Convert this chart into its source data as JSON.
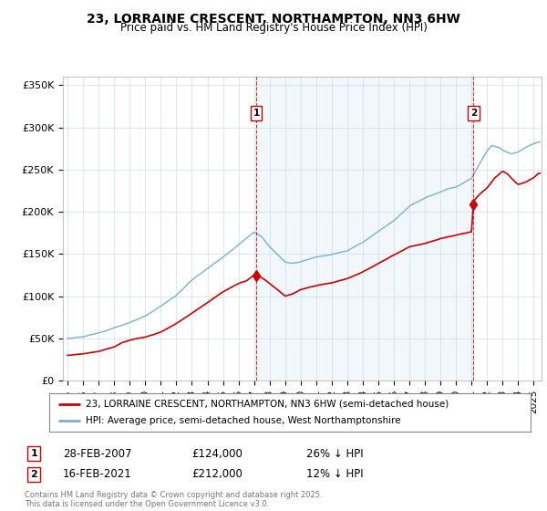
{
  "title_line1": "23, LORRAINE CRESCENT, NORTHAMPTON, NN3 6HW",
  "title_line2": "Price paid vs. HM Land Registry's House Price Index (HPI)",
  "ytick_labels": [
    "£0",
    "£50K",
    "£100K",
    "£150K",
    "£200K",
    "£250K",
    "£300K",
    "£350K"
  ],
  "ytick_values": [
    0,
    50000,
    100000,
    150000,
    200000,
    250000,
    300000,
    350000
  ],
  "ylim": [
    0,
    360000
  ],
  "xlim_start": 1994.7,
  "xlim_end": 2025.5,
  "xtick_years": [
    1995,
    1996,
    1997,
    1998,
    1999,
    2000,
    2001,
    2002,
    2003,
    2004,
    2005,
    2006,
    2007,
    2008,
    2009,
    2010,
    2011,
    2012,
    2013,
    2014,
    2015,
    2016,
    2017,
    2018,
    2019,
    2020,
    2021,
    2022,
    2023,
    2024,
    2025
  ],
  "legend_entry1": "23, LORRAINE CRESCENT, NORTHAMPTON, NN3 6HW (semi-detached house)",
  "legend_entry2": "HPI: Average price, semi-detached house, West Northamptonshire",
  "color_price_paid": "#cc0000",
  "color_hpi": "#7ab0d4",
  "color_hpi_fill": "#ddeeff",
  "purchase1_date": 2007.15,
  "purchase1_price": 124000,
  "purchase1_label": "1",
  "purchase2_date": 2021.12,
  "purchase2_price": 212000,
  "purchase2_label": "2",
  "annotation1_text": "28-FEB-2007",
  "annotation1_price": "£124,000",
  "annotation1_pct": "26% ↓ HPI",
  "annotation2_text": "16-FEB-2021",
  "annotation2_price": "£212,000",
  "annotation2_pct": "12% ↓ HPI",
  "footer_text": "Contains HM Land Registry data © Crown copyright and database right 2025.\nThis data is licensed under the Open Government Licence v3.0.",
  "background_color": "#ffffff",
  "grid_color": "#ccddee"
}
